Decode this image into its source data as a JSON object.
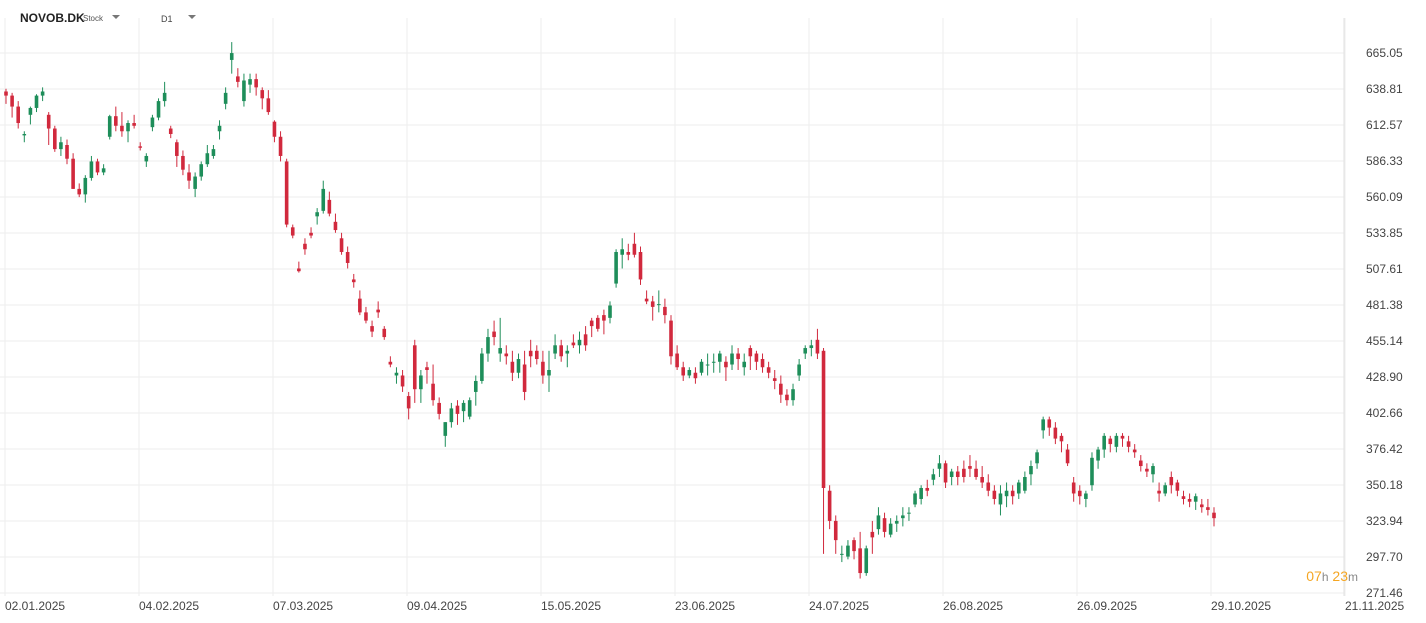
{
  "header": {
    "symbol": "NOVOB.DK",
    "symbol_type": "Stock",
    "timeframe": "D1"
  },
  "countdown": {
    "hours": "07",
    "h_unit": "h",
    "minutes": "23",
    "m_unit": "m"
  },
  "colors": {
    "up": "#1e8e5a",
    "down": "#d1293d",
    "grid": "#eeeeee",
    "countdown": "#f5a623"
  },
  "chart_data": {
    "type": "candlestick",
    "y_ticks": [
      665.05,
      638.81,
      612.57,
      586.33,
      560.09,
      533.85,
      507.61,
      481.38,
      455.14,
      428.9,
      402.66,
      376.42,
      350.18,
      323.94,
      297.7,
      271.46
    ],
    "y_tick_labels": [
      "665.05",
      "638.81",
      "612.57",
      "586.33",
      "560.09",
      "533.85",
      "507.61",
      "481.38",
      "455.14",
      "428.90",
      "402.66",
      "376.42",
      "350.18",
      "323.94",
      "297.70",
      "271.46"
    ],
    "ylim": [
      271.46,
      665.05
    ],
    "x_labels": [
      "02.01.2025",
      "04.02.2025",
      "07.03.2025",
      "09.04.2025",
      "15.05.2025",
      "23.06.2025",
      "24.07.2025",
      "26.08.2025",
      "26.09.2025",
      "29.10.2025",
      "21.11.2025"
    ],
    "last_close": 326,
    "candles": [
      [
        637,
        639,
        628,
        634
      ],
      [
        634,
        636,
        618,
        626
      ],
      [
        626,
        630,
        610,
        614
      ],
      [
        605,
        608,
        600,
        606
      ],
      [
        620,
        626,
        613,
        625
      ],
      [
        625,
        635,
        622,
        634
      ],
      [
        634,
        640,
        630,
        637
      ],
      [
        620,
        622,
        598,
        610
      ],
      [
        610,
        612,
        593,
        595
      ],
      [
        595,
        604,
        590,
        600
      ],
      [
        598,
        602,
        584,
        588
      ],
      [
        588,
        592,
        566,
        566
      ],
      [
        566,
        570,
        560,
        562
      ],
      [
        562,
        576,
        556,
        574
      ],
      [
        574,
        590,
        572,
        586
      ],
      [
        586,
        588,
        576,
        578
      ],
      [
        578,
        584,
        576,
        581
      ],
      [
        604,
        620,
        602,
        619
      ],
      [
        619,
        626,
        608,
        612
      ],
      [
        612,
        622,
        604,
        608
      ],
      [
        608,
        616,
        600,
        614
      ],
      [
        614,
        620,
        610,
        612
      ],
      [
        597,
        600,
        594,
        596
      ],
      [
        586,
        592,
        582,
        590
      ],
      [
        611,
        620,
        608,
        618
      ],
      [
        618,
        632,
        616,
        630
      ],
      [
        630,
        644,
        626,
        636
      ],
      [
        610,
        612,
        603,
        606
      ],
      [
        600,
        602,
        582,
        590
      ],
      [
        590,
        594,
        576,
        580
      ],
      [
        578,
        584,
        566,
        572
      ],
      [
        566,
        578,
        560,
        575
      ],
      [
        575,
        586,
        572,
        584
      ],
      [
        584,
        598,
        582,
        592
      ],
      [
        590,
        598,
        588,
        595
      ],
      [
        608,
        616,
        602,
        612
      ],
      [
        628,
        640,
        624,
        636
      ],
      [
        660,
        673,
        650,
        665
      ],
      [
        648,
        654,
        640,
        644
      ],
      [
        630,
        650,
        626,
        645
      ],
      [
        642,
        650,
        636,
        646
      ],
      [
        646,
        650,
        634,
        640
      ],
      [
        638,
        640,
        624,
        632
      ],
      [
        632,
        638,
        620,
        622
      ],
      [
        615,
        616,
        600,
        604
      ],
      [
        604,
        608,
        586,
        590
      ],
      [
        586,
        588,
        538,
        540
      ],
      [
        538,
        540,
        530,
        532
      ],
      [
        508,
        513,
        505,
        506
      ],
      [
        526,
        530,
        518,
        522
      ],
      [
        534,
        538,
        530,
        532
      ],
      [
        546,
        552,
        540,
        549
      ],
      [
        550,
        572,
        548,
        566
      ],
      [
        558,
        564,
        546,
        548
      ],
      [
        542,
        548,
        534,
        536
      ],
      [
        530,
        534,
        518,
        520
      ],
      [
        520,
        524,
        508,
        512
      ],
      [
        500,
        504,
        494,
        498
      ],
      [
        486,
        492,
        474,
        476
      ],
      [
        476,
        480,
        468,
        470
      ],
      [
        466,
        470,
        458,
        462
      ],
      [
        478,
        484,
        472,
        476
      ],
      [
        464,
        466,
        456,
        458
      ],
      [
        440,
        444,
        436,
        438
      ],
      [
        430,
        436,
        424,
        432
      ],
      [
        430,
        434,
        418,
        422
      ],
      [
        415,
        418,
        398,
        406
      ],
      [
        452,
        456,
        410,
        420
      ],
      [
        420,
        434,
        410,
        430
      ],
      [
        436,
        440,
        424,
        434
      ],
      [
        424,
        438,
        408,
        412
      ],
      [
        410,
        414,
        398,
        402
      ],
      [
        386,
        396,
        378,
        396
      ],
      [
        396,
        410,
        392,
        406
      ],
      [
        408,
        412,
        394,
        402
      ],
      [
        404,
        412,
        396,
        410
      ],
      [
        400,
        414,
        398,
        412
      ],
      [
        418,
        430,
        408,
        426
      ],
      [
        426,
        450,
        424,
        446
      ],
      [
        446,
        464,
        440,
        458
      ],
      [
        462,
        470,
        452,
        458
      ],
      [
        446,
        472,
        440,
        450
      ],
      [
        446,
        452,
        438,
        444
      ],
      [
        440,
        448,
        426,
        432
      ],
      [
        432,
        446,
        428,
        442
      ],
      [
        438,
        448,
        412,
        418
      ],
      [
        448,
        456,
        436,
        444
      ],
      [
        448,
        452,
        438,
        442
      ],
      [
        440,
        448,
        424,
        430
      ],
      [
        430,
        448,
        418,
        434
      ],
      [
        446,
        460,
        442,
        452
      ],
      [
        452,
        456,
        440,
        444
      ],
      [
        446,
        452,
        436,
        448
      ],
      [
        454,
        460,
        450,
        452
      ],
      [
        452,
        462,
        446,
        456
      ],
      [
        460,
        466,
        448,
        452
      ],
      [
        470,
        472,
        458,
        466
      ],
      [
        472,
        474,
        462,
        464
      ],
      [
        474,
        478,
        460,
        470
      ],
      [
        472,
        484,
        468,
        481
      ],
      [
        497,
        522,
        494,
        520
      ],
      [
        518,
        530,
        508,
        522
      ],
      [
        520,
        526,
        514,
        518
      ],
      [
        526,
        534,
        516,
        518
      ],
      [
        520,
        524,
        496,
        500
      ],
      [
        486,
        492,
        482,
        484
      ],
      [
        484,
        488,
        470,
        480
      ],
      [
        482,
        492,
        476,
        482
      ],
      [
        480,
        486,
        468,
        474
      ],
      [
        470,
        474,
        438,
        444
      ],
      [
        446,
        452,
        434,
        436
      ],
      [
        436,
        440,
        426,
        430
      ],
      [
        430,
        436,
        428,
        434
      ],
      [
        432,
        436,
        424,
        428
      ],
      [
        432,
        442,
        430,
        440
      ],
      [
        438,
        446,
        430,
        438
      ],
      [
        440,
        446,
        432,
        440
      ],
      [
        440,
        448,
        432,
        446
      ],
      [
        440,
        444,
        426,
        436
      ],
      [
        438,
        452,
        434,
        446
      ],
      [
        446,
        450,
        434,
        442
      ],
      [
        436,
        446,
        430,
        440
      ],
      [
        450,
        452,
        434,
        444
      ],
      [
        446,
        448,
        434,
        440
      ],
      [
        442,
        446,
        432,
        436
      ],
      [
        436,
        440,
        428,
        432
      ],
      [
        428,
        434,
        420,
        426
      ],
      [
        424,
        430,
        410,
        416
      ],
      [
        416,
        420,
        408,
        412
      ],
      [
        412,
        424,
        408,
        420
      ],
      [
        430,
        442,
        426,
        438
      ],
      [
        446,
        452,
        442,
        450
      ],
      [
        450,
        456,
        444,
        452
      ],
      [
        456,
        464,
        442,
        446
      ],
      [
        448,
        450,
        300,
        348
      ],
      [
        346,
        350,
        318,
        324
      ],
      [
        324,
        328,
        300,
        310
      ],
      [
        300,
        306,
        294,
        300
      ],
      [
        298,
        310,
        296,
        306
      ],
      [
        310,
        312,
        296,
        302
      ],
      [
        304,
        316,
        282,
        286
      ],
      [
        286,
        306,
        284,
        304
      ],
      [
        316,
        324,
        300,
        312
      ],
      [
        318,
        334,
        314,
        328
      ],
      [
        326,
        330,
        312,
        316
      ],
      [
        314,
        326,
        312,
        322
      ],
      [
        322,
        328,
        316,
        324
      ],
      [
        326,
        334,
        320,
        328
      ],
      [
        330,
        334,
        324,
        330
      ],
      [
        336,
        346,
        334,
        344
      ],
      [
        340,
        350,
        336,
        348
      ],
      [
        348,
        354,
        342,
        346
      ],
      [
        354,
        362,
        350,
        358
      ],
      [
        362,
        372,
        356,
        366
      ],
      [
        366,
        368,
        348,
        352
      ],
      [
        356,
        362,
        350,
        360
      ],
      [
        360,
        364,
        350,
        356
      ],
      [
        362,
        368,
        352,
        356
      ],
      [
        364,
        372,
        356,
        362
      ],
      [
        362,
        368,
        354,
        356
      ],
      [
        356,
        364,
        348,
        352
      ],
      [
        352,
        358,
        342,
        346
      ],
      [
        346,
        350,
        336,
        340
      ],
      [
        336,
        350,
        328,
        344
      ],
      [
        342,
        352,
        334,
        346
      ],
      [
        346,
        350,
        336,
        342
      ],
      [
        344,
        354,
        340,
        352
      ],
      [
        346,
        360,
        344,
        356
      ],
      [
        358,
        368,
        350,
        364
      ],
      [
        366,
        376,
        362,
        374
      ],
      [
        390,
        400,
        384,
        398
      ],
      [
        398,
        400,
        386,
        392
      ],
      [
        392,
        396,
        380,
        384
      ],
      [
        386,
        388,
        374,
        382
      ],
      [
        376,
        380,
        364,
        366
      ],
      [
        352,
        356,
        338,
        344
      ],
      [
        346,
        350,
        336,
        342
      ],
      [
        340,
        346,
        334,
        344
      ],
      [
        350,
        374,
        346,
        370
      ],
      [
        368,
        378,
        362,
        376
      ],
      [
        376,
        388,
        370,
        386
      ],
      [
        384,
        386,
        374,
        380
      ],
      [
        378,
        388,
        374,
        386
      ],
      [
        386,
        388,
        378,
        384
      ],
      [
        382,
        386,
        374,
        378
      ],
      [
        376,
        380,
        370,
        374
      ],
      [
        368,
        372,
        360,
        364
      ],
      [
        362,
        366,
        356,
        360
      ],
      [
        358,
        366,
        352,
        364
      ],
      [
        346,
        352,
        338,
        344
      ],
      [
        344,
        352,
        342,
        350
      ],
      [
        356,
        360,
        344,
        350
      ],
      [
        352,
        354,
        342,
        346
      ],
      [
        342,
        346,
        336,
        340
      ],
      [
        340,
        344,
        334,
        338
      ],
      [
        338,
        344,
        332,
        342
      ],
      [
        336,
        340,
        330,
        334
      ],
      [
        334,
        340,
        328,
        332
      ],
      [
        330,
        334,
        320,
        326
      ]
    ]
  }
}
